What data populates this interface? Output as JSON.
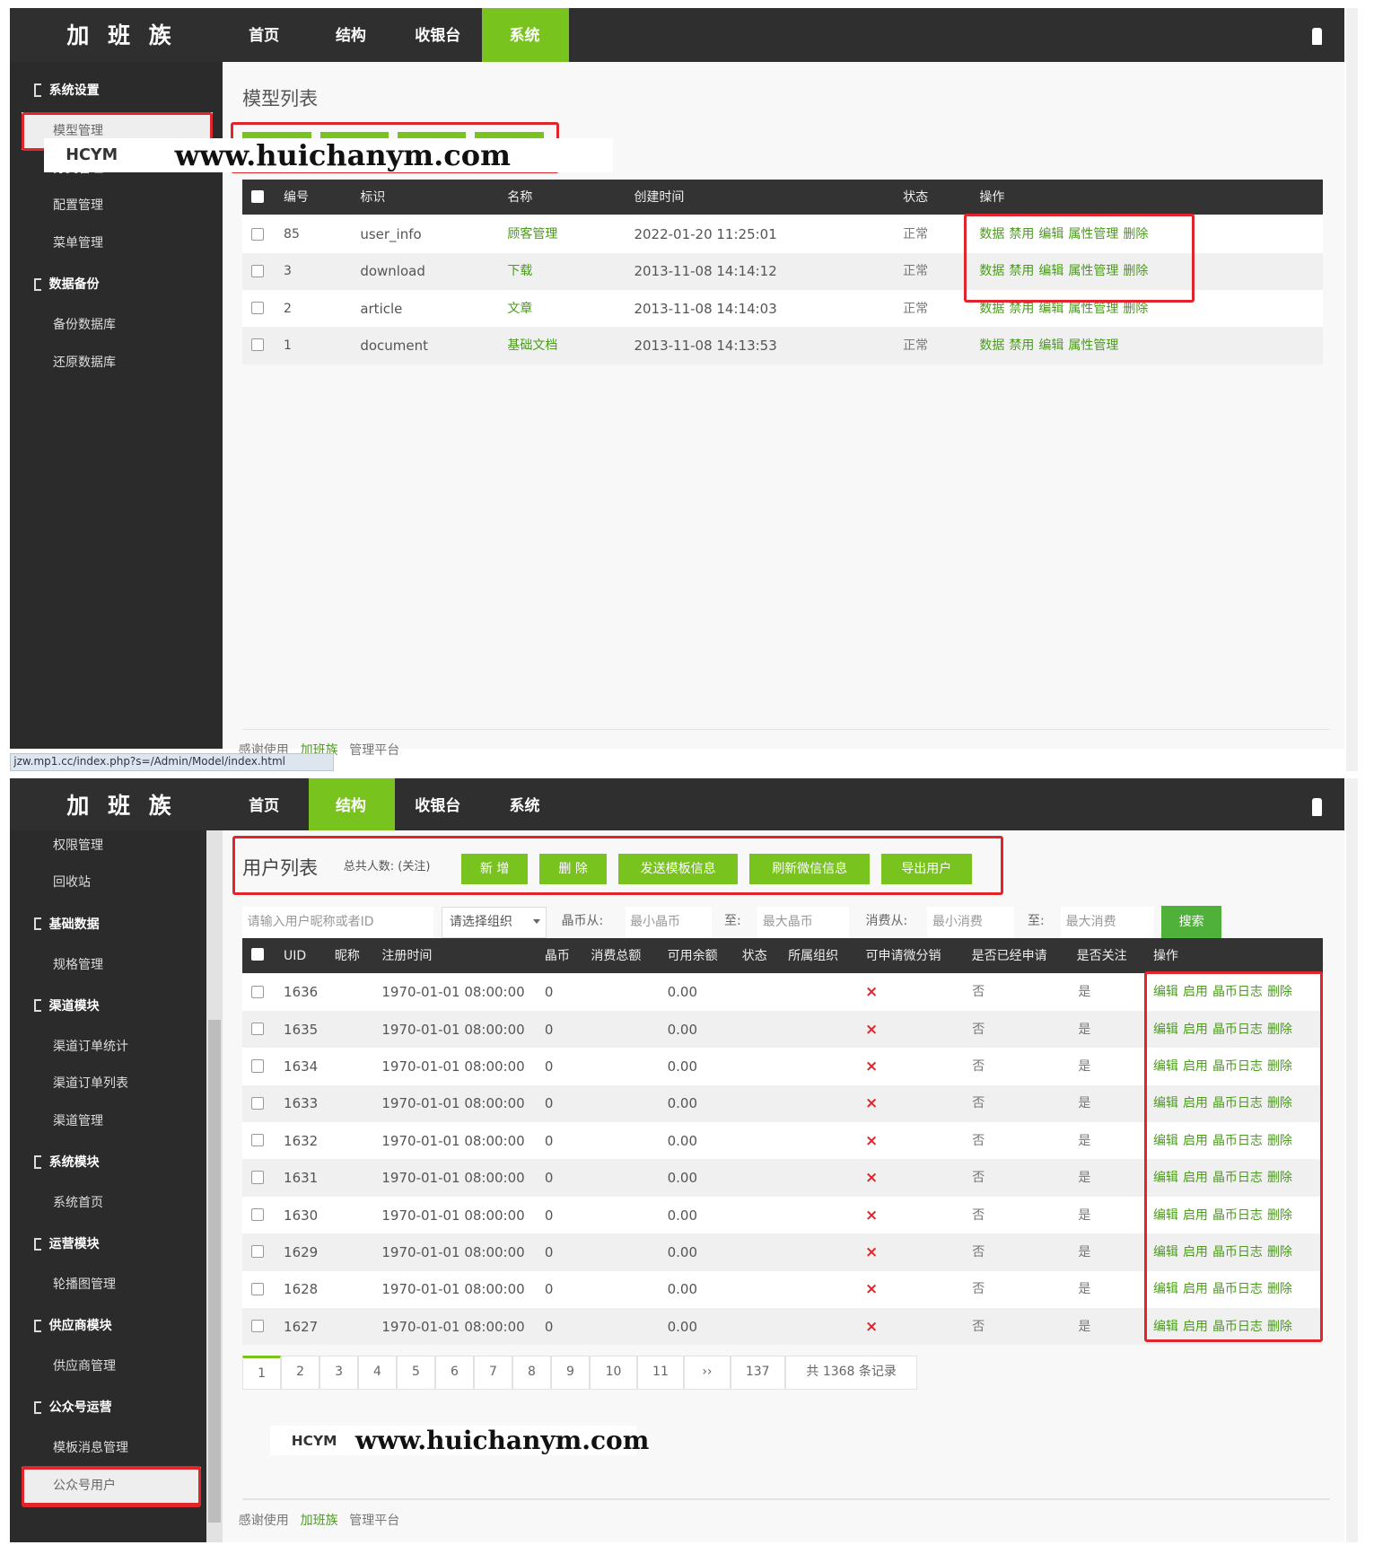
{
  "panels": [
    {
      "brand": "加 班 族",
      "nav": [
        "首页",
        "结构",
        "收银台",
        "系统"
      ],
      "active_nav": 3,
      "sidebar": [
        {
          "group": "系统设置",
          "items": [
            "模型管理",
            "分类管理",
            "配置管理",
            "菜单管理"
          ]
        },
        {
          "group": "数据备份",
          "items": [
            "备份数据库",
            "还原数据库"
          ]
        }
      ],
      "active_item": {
        "section": 0,
        "item": 0
      },
      "title": "模型列表",
      "table": {
        "columns": [
          "编号",
          "标识",
          "名称",
          "创建时间",
          "状态",
          "操作"
        ],
        "rows": [
          {
            "id": 85,
            "key": "user_info",
            "name": "顾客管理",
            "created": "2022-01-20 11:25:01",
            "status": "正常",
            "actions": [
              "数据",
              "禁用",
              "编辑",
              "属性管理",
              "删除"
            ]
          },
          {
            "id": 3,
            "key": "download",
            "name": "下载",
            "created": "2013-11-08 14:14:12",
            "status": "正常",
            "actions": [
              "数据",
              "禁用",
              "编辑",
              "属性管理",
              "删除"
            ]
          },
          {
            "id": 2,
            "key": "article",
            "name": "文章",
            "created": "2013-11-08 14:14:03",
            "status": "正常",
            "actions": [
              "数据",
              "禁用",
              "编辑",
              "属性管理",
              "删除"
            ]
          },
          {
            "id": 1,
            "key": "document",
            "name": "基础文档",
            "created": "2013-11-08 14:13:53",
            "status": "正常",
            "actions": [
              "数据",
              "禁用",
              "编辑",
              "属性管理"
            ]
          }
        ]
      },
      "watermark": {
        "logo": "HCYM",
        "url": "www.huichanym.com"
      },
      "footer": {
        "text": "感谢使用",
        "brand": "加班族",
        "suffix": "管理平台"
      },
      "status_url": "jzw.mp1.cc/index.php?s=/Admin/Model/index.html"
    },
    {
      "brand": "加 班 族",
      "nav": [
        "首页",
        "结构",
        "收银台",
        "系统"
      ],
      "active_nav": 1,
      "sidebar": [
        {
          "items": [
            "权限管理",
            "回收站"
          ]
        },
        {
          "group": "基础数据",
          "items": [
            "规格管理"
          ]
        },
        {
          "group": "渠道模块",
          "items": [
            "渠道订单统计",
            "渠道订单列表",
            "渠道管理"
          ]
        },
        {
          "group": "系统模块",
          "items": [
            "系统首页"
          ]
        },
        {
          "group": "运营模块",
          "items": [
            "轮播图管理"
          ]
        },
        {
          "group": "供应商模块",
          "items": [
            "供应商管理"
          ]
        },
        {
          "group": "公众号运营",
          "items": [
            "模板消息管理",
            "公众号用户"
          ]
        }
      ],
      "active_item": {
        "section": 6,
        "item": 1
      },
      "title": "用户列表",
      "summary": "总共人数: (关注)",
      "buttons": [
        "新 增",
        "删 除",
        "发送模板信息",
        "刷新微信信息",
        "导出用户"
      ],
      "filters": {
        "keyword": "请输入用户昵称或者ID",
        "group": "请选择组织",
        "coins_from": "晶币从:",
        "coins_min": "最小晶币",
        "coins_to": "至:",
        "coins_max": "最大晶币",
        "spend_from": "消费从:",
        "spend_min": "最小消费",
        "spend_to": "至:",
        "spend_max": "最大消费",
        "search": "搜索"
      },
      "table": {
        "columns": [
          "UID",
          "昵称",
          "注册时间",
          "晶币",
          "消费总额",
          "可用余额",
          "状态",
          "所属组织",
          "可申请微分销",
          "是否已经申请",
          "是否关注",
          "操作"
        ],
        "rows": [
          {
            "uid": 1636,
            "registered": "1970-01-01 08:00:00",
            "coins": 0,
            "balance": "0.00",
            "can_distribute": "×",
            "applied": "否",
            "followed": "是",
            "actions": [
              "编辑",
              "启用",
              "晶币日志",
              "删除"
            ]
          },
          {
            "uid": 1635,
            "registered": "1970-01-01 08:00:00",
            "coins": 0,
            "balance": "0.00",
            "can_distribute": "×",
            "applied": "否",
            "followed": "是",
            "actions": [
              "编辑",
              "启用",
              "晶币日志",
              "删除"
            ]
          },
          {
            "uid": 1634,
            "registered": "1970-01-01 08:00:00",
            "coins": 0,
            "balance": "0.00",
            "can_distribute": "×",
            "applied": "否",
            "followed": "是",
            "actions": [
              "编辑",
              "启用",
              "晶币日志",
              "删除"
            ]
          },
          {
            "uid": 1633,
            "registered": "1970-01-01 08:00:00",
            "coins": 0,
            "balance": "0.00",
            "can_distribute": "×",
            "applied": "否",
            "followed": "是",
            "actions": [
              "编辑",
              "启用",
              "晶币日志",
              "删除"
            ]
          },
          {
            "uid": 1632,
            "registered": "1970-01-01 08:00:00",
            "coins": 0,
            "balance": "0.00",
            "can_distribute": "×",
            "applied": "否",
            "followed": "是",
            "actions": [
              "编辑",
              "启用",
              "晶币日志",
              "删除"
            ]
          },
          {
            "uid": 1631,
            "registered": "1970-01-01 08:00:00",
            "coins": 0,
            "balance": "0.00",
            "can_distribute": "×",
            "applied": "否",
            "followed": "是",
            "actions": [
              "编辑",
              "启用",
              "晶币日志",
              "删除"
            ]
          },
          {
            "uid": 1630,
            "registered": "1970-01-01 08:00:00",
            "coins": 0,
            "balance": "0.00",
            "can_distribute": "×",
            "applied": "否",
            "followed": "是",
            "actions": [
              "编辑",
              "启用",
              "晶币日志",
              "删除"
            ]
          },
          {
            "uid": 1629,
            "registered": "1970-01-01 08:00:00",
            "coins": 0,
            "balance": "0.00",
            "can_distribute": "×",
            "applied": "否",
            "followed": "是",
            "actions": [
              "编辑",
              "启用",
              "晶币日志",
              "删除"
            ]
          },
          {
            "uid": 1628,
            "registered": "1970-01-01 08:00:00",
            "coins": 0,
            "balance": "0.00",
            "can_distribute": "×",
            "applied": "否",
            "followed": "是",
            "actions": [
              "编辑",
              "启用",
              "晶币日志",
              "删除"
            ]
          },
          {
            "uid": 1627,
            "registered": "1970-01-01 08:00:00",
            "coins": 0,
            "balance": "0.00",
            "can_distribute": "×",
            "applied": "否",
            "followed": "是",
            "actions": [
              "编辑",
              "启用",
              "晶币日志",
              "删除"
            ]
          }
        ]
      },
      "pagination": {
        "pages": [
          1,
          2,
          3,
          4,
          5,
          6,
          7,
          8,
          9,
          10,
          11
        ],
        "next": "››",
        "last": 137,
        "total": "共 1368 条记录"
      },
      "watermark": {
        "logo": "HCYM",
        "url": "www.huichanym.com"
      },
      "footer": {
        "text": "感谢使用",
        "brand": "加班族",
        "suffix": "管理平台"
      }
    }
  ]
}
